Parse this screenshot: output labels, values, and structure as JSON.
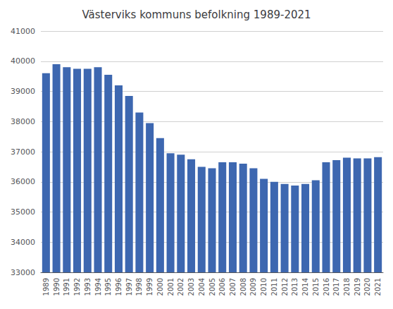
{
  "chart_data": {
    "type": "bar",
    "title": "Västerviks kommuns befolkning 1989-2021",
    "categories": [
      "1989",
      "1990",
      "1991",
      "1992",
      "1993",
      "1994",
      "1995",
      "1996",
      "1997",
      "1998",
      "1999",
      "2000",
      "2001",
      "2002",
      "2003",
      "2004",
      "2005",
      "2006",
      "2007",
      "2008",
      "2009",
      "2010",
      "2011",
      "2012",
      "2013",
      "2014",
      "2015",
      "2016",
      "2017",
      "2018",
      "2019",
      "2020",
      "2021"
    ],
    "values": [
      39600,
      39900,
      39800,
      39750,
      39750,
      39800,
      39550,
      39200,
      38850,
      38300,
      37950,
      37450,
      36950,
      36900,
      36750,
      36500,
      36450,
      36650,
      36650,
      36600,
      36450,
      36100,
      36000,
      35930,
      35880,
      35930,
      36050,
      36650,
      36720,
      36800,
      36780,
      36780,
      36820
    ],
    "color": "#3D67B0",
    "ylim": [
      33000,
      41000
    ],
    "yticks": [
      33000,
      34000,
      35000,
      36000,
      37000,
      38000,
      39000,
      40000,
      41000
    ],
    "grid": true
  }
}
